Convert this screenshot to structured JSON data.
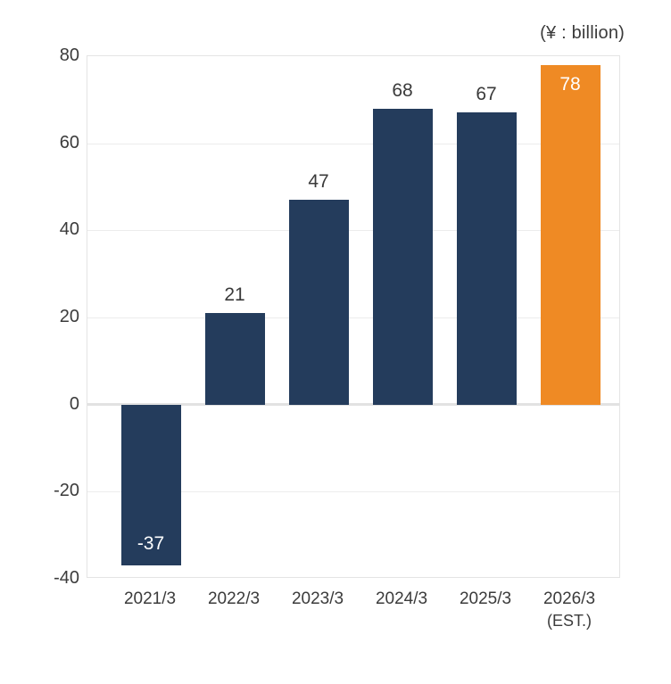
{
  "unit_label": "(¥ : billion)",
  "colors": {
    "bar": "#243c5c",
    "bar_estimate": "#ef8a24",
    "label_dark": "#3a3a3a",
    "label_light": "#ffffff",
    "grid": "#ececec",
    "zero_line": "#e2e2e2",
    "plot_border": "#e4e4e4"
  },
  "chart_data": {
    "type": "bar",
    "title": "",
    "unit": "¥ billion",
    "categories": [
      "2021/3",
      "2022/3",
      "2023/3",
      "2024/3",
      "2025/3",
      "2026/3 (EST.)"
    ],
    "values": [
      -37,
      21,
      47,
      68,
      67,
      78
    ],
    "ylim": [
      -40,
      80
    ],
    "yticks": [
      80,
      60,
      40,
      20,
      0,
      -20,
      -40
    ],
    "grid": true,
    "legend": "none",
    "bars": [
      {
        "category_lines": [
          "2021/3"
        ],
        "value": -37,
        "label": "-37",
        "estimate": false,
        "label_placement": "inside-bottom"
      },
      {
        "category_lines": [
          "2022/3"
        ],
        "value": 21,
        "label": "21",
        "estimate": false,
        "label_placement": "above"
      },
      {
        "category_lines": [
          "2023/3"
        ],
        "value": 47,
        "label": "47",
        "estimate": false,
        "label_placement": "above"
      },
      {
        "category_lines": [
          "2024/3"
        ],
        "value": 68,
        "label": "68",
        "estimate": false,
        "label_placement": "above"
      },
      {
        "category_lines": [
          "2025/3"
        ],
        "value": 67,
        "label": "67",
        "estimate": false,
        "label_placement": "above"
      },
      {
        "category_lines": [
          "2026/3",
          "(EST.)"
        ],
        "value": 78,
        "label": "78",
        "estimate": true,
        "label_placement": "inside-top"
      }
    ]
  }
}
